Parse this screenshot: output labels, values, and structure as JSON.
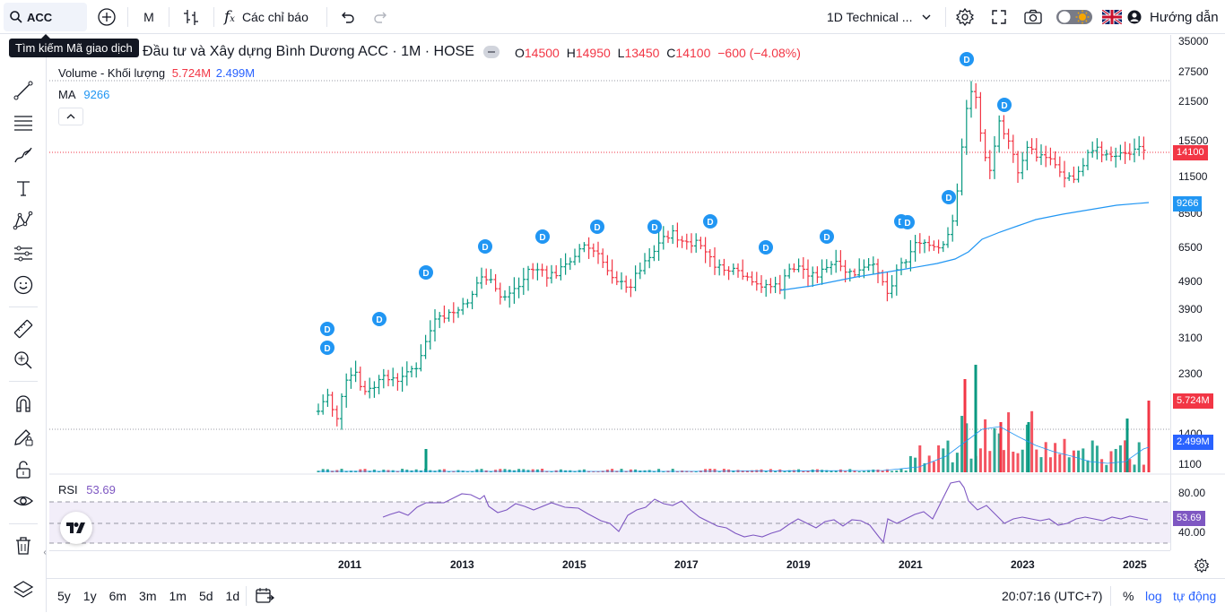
{
  "toolbar": {
    "symbol": "ACC",
    "interval": "M",
    "indicators_label": "Các chỉ báo",
    "layout_name": "1D Technical ...",
    "guide_label": "Hướng dẫn",
    "search_tooltip": "Tìm kiếm Mã giao dịch"
  },
  "legend": {
    "title": "Đầu tư và Xây dựng Bình Dương ACC · 1M · HOSE",
    "o_label": "O",
    "o_value": "14500",
    "h_label": "H",
    "h_value": "14950",
    "l_label": "L",
    "l_value": "13450",
    "c_label": "C",
    "c_value": "14100",
    "change": "−600 (−4.08%)",
    "volume_label": "Volume - Khối lượng",
    "volume_value": "5.724M",
    "volume_ma": "2.499M",
    "ma_label": "MA",
    "ma_value": "9266",
    "rsi_label": "RSI",
    "rsi_value": "53.69"
  },
  "price_axis": [
    "35000",
    "27500",
    "21500",
    "15500",
    "11500",
    "8500",
    "6500",
    "4900",
    "3900",
    "3100",
    "2300",
    "1400",
    "1100"
  ],
  "price_tags": {
    "last": "14100",
    "ma": "9266",
    "volume": "5.724M",
    "volume_ma": "2.499M",
    "rsi": "53.69"
  },
  "rsi_axis": [
    "80.00",
    "40.00"
  ],
  "time_axis": [
    "2011",
    "2013",
    "2015",
    "2017",
    "2019",
    "2021",
    "2023",
    "2025"
  ],
  "dividend_marker": "D",
  "bottombar": {
    "ranges": [
      "5y",
      "1y",
      "6m",
      "3m",
      "1m",
      "5d",
      "1d"
    ],
    "clock": "20:07:16 (UTC+7)",
    "percent": "%",
    "log": "log",
    "auto": "tự động"
  },
  "colors": {
    "up": "#089981",
    "down": "#f23645",
    "ma": "#2196f3",
    "rsi": "#7e57c2",
    "accent": "#2962ff"
  },
  "chart_data": {
    "type": "ohlc",
    "title": "Đầu tư và Xây dựng Bình Dương ACC · 1M · HOSE",
    "price_scale": "log",
    "ylim": [
      1100,
      35000
    ],
    "last_bar": {
      "open": 14500,
      "high": 14950,
      "low": 13450,
      "close": 14100,
      "change": -600,
      "change_pct": -4.08
    },
    "ma_last": 9266,
    "volume_last": "5.724M",
    "volume_ma_last": "2.499M",
    "rsi_last": 53.69,
    "rsi_levels": [
      80,
      40
    ]
  }
}
